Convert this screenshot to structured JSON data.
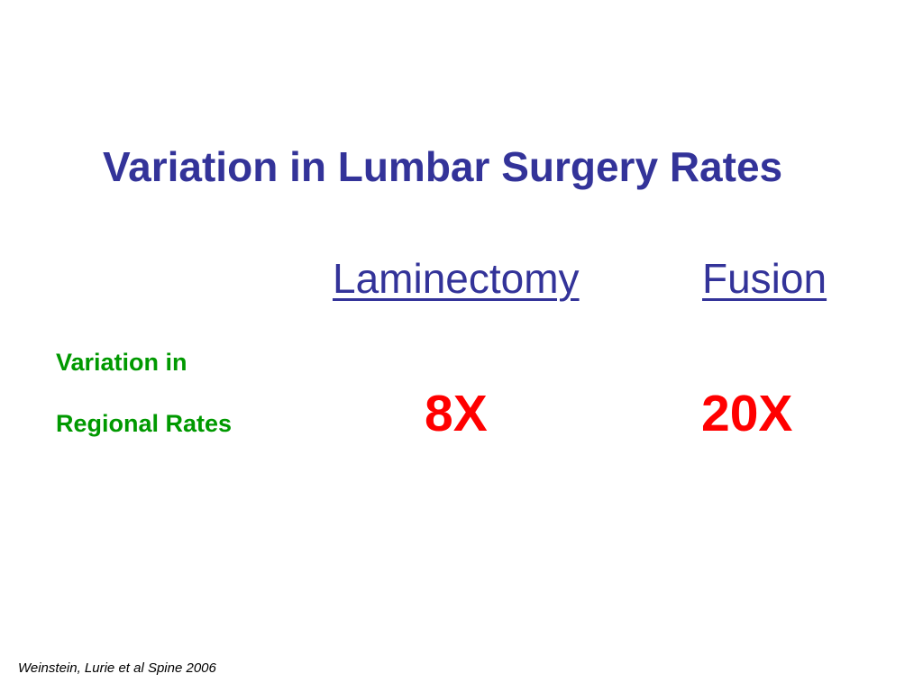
{
  "slide": {
    "title": "Variation in Lumbar Surgery Rates",
    "columns": [
      {
        "header": "Laminectomy",
        "value": "8X"
      },
      {
        "header": "Fusion",
        "value": "20X"
      }
    ],
    "row_label": {
      "line1": "Variation in",
      "line2": "Regional Rates"
    },
    "citation": "Weinstein, Lurie et al Spine 2006"
  },
  "colors": {
    "title": "#333399",
    "row_label": "#009900",
    "value": "#ff0000",
    "background": "#ffffff"
  }
}
